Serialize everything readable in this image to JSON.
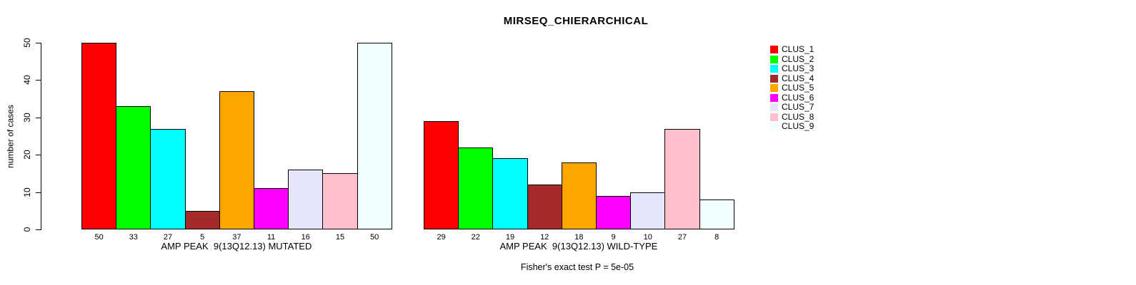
{
  "chart_data": {
    "type": "bar",
    "title": "MIRSEQ_CHIERARCHICAL",
    "ylabel": "number of cases",
    "ylim": [
      0,
      50
    ],
    "yticks": [
      0,
      10,
      20,
      30,
      40,
      50
    ],
    "grid": false,
    "legend_position": "right",
    "legend": [
      {
        "label": "CLUS_1",
        "color": "#FF0000"
      },
      {
        "label": "CLUS_2",
        "color": "#00FF00"
      },
      {
        "label": "CLUS_3",
        "color": "#00FFFF"
      },
      {
        "label": "CLUS_4",
        "color": "#A52A2A"
      },
      {
        "label": "CLUS_5",
        "color": "#FFA500"
      },
      {
        "label": "CLUS_6",
        "color": "#FF00FF"
      },
      {
        "label": "CLUS_7",
        "color": "#E6E6FA"
      },
      {
        "label": "CLUS_8",
        "color": "#FFC0CB"
      },
      {
        "label": "CLUS_9",
        "color": "#F0FFFF"
      }
    ],
    "groups": [
      {
        "label": "AMP PEAK  9(13Q12.13) MUTATED",
        "categories": [
          "CLUS_1",
          "CLUS_2",
          "CLUS_3",
          "CLUS_4",
          "CLUS_5",
          "CLUS_6",
          "CLUS_7",
          "CLUS_8",
          "CLUS_9"
        ],
        "values": [
          50,
          33,
          27,
          5,
          37,
          11,
          16,
          15,
          50
        ]
      },
      {
        "label": "AMP PEAK  9(13Q12.13) WILD-TYPE",
        "categories": [
          "CLUS_1",
          "CLUS_2",
          "CLUS_3",
          "CLUS_4",
          "CLUS_5",
          "CLUS_6",
          "CLUS_7",
          "CLUS_8",
          "CLUS_9"
        ],
        "values": [
          29,
          22,
          19,
          12,
          18,
          9,
          10,
          27,
          8
        ]
      }
    ],
    "annotation": "Fisher's exact test P = 5e-05"
  }
}
